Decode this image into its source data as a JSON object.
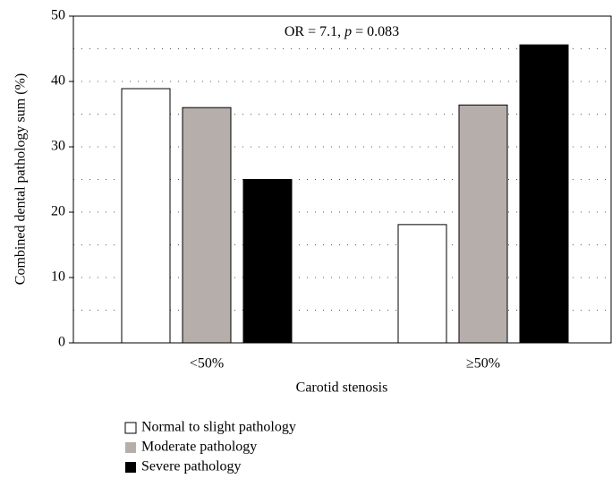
{
  "chart_data": {
    "type": "bar",
    "annotation": [
      {
        "text": "OR = 7.1, "
      },
      {
        "text": "p",
        "italic": true
      },
      {
        "text": " = 0.083"
      }
    ],
    "xlabel": "Carotid stenosis",
    "ylabel": "Combined dental pathology sum (%)",
    "categories": [
      "<50%",
      "≥50%"
    ],
    "series": [
      {
        "name": "Normal to slight pathology",
        "color": "#ffffff",
        "values": [
          38.9,
          18.1
        ]
      },
      {
        "name": "Moderate pathology",
        "color": "#b5aeab",
        "values": [
          36.0,
          36.4
        ]
      },
      {
        "name": "Severe pathology",
        "color": "#000000",
        "values": [
          25.0,
          45.6
        ]
      }
    ],
    "ylim": [
      0,
      50
    ],
    "yticks": [
      0,
      10,
      20,
      30,
      40,
      50
    ],
    "yminorgrid": [
      5,
      15,
      25,
      35,
      45
    ],
    "grid": true
  }
}
